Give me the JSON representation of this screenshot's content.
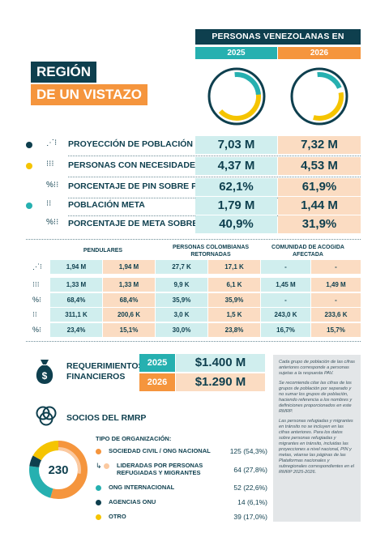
{
  "header": {
    "dest_title": "PERSONAS VENEZOLANAS EN DESTINO",
    "year_2025": "2025",
    "year_2026": "2026",
    "title_line1": "REGIÓN",
    "title_line2": "DE UN VISTAZO"
  },
  "donuts": [
    {
      "year": "2025",
      "teal_fraction": 0.25,
      "orange_fraction": 0.41
    },
    {
      "year": "2026",
      "teal_fraction": 0.2,
      "orange_fraction": 0.32
    }
  ],
  "indicators": [
    {
      "label": "PROYECCIÓN DE POBLACIÓN (PP)",
      "v2025": "7,03 M",
      "v2026": "7,32 M",
      "dot": "#0e3f4e",
      "icon": "population-projection-icon"
    },
    {
      "label": "PERSONAS CON NECESIDADES (PIN)",
      "v2025": "4,37 M",
      "v2026": "4,53 M",
      "dot": "#f5c400",
      "icon": "people-in-need-icon"
    },
    {
      "label": "PORCENTAJE DE PIN SOBRE PP",
      "v2025": "62,1%",
      "v2026": "61,9%",
      "dot": "",
      "icon": "pin-percentage-icon"
    },
    {
      "label": "POBLACIÓN META",
      "v2025": "1,79 M",
      "v2026": "1,44 M",
      "dot": "#26b0b0",
      "icon": "target-population-icon"
    },
    {
      "label": "PORCENTAJE DE META SOBRE PIN",
      "v2025": "40,9%",
      "v2026": "31,9%",
      "dot": "",
      "icon": "target-percentage-icon"
    }
  ],
  "breakdown": {
    "groups": [
      "PENDULARES",
      "PERSONAS COLOMBIANAS RETORNADAS",
      "COMUNIDAD DE ACOGIDA AFECTADA"
    ],
    "rows": [
      {
        "icon": "population-projection-icon",
        "cells": [
          "1,94 M",
          "1,94 M",
          "27,7 K",
          "17,1 K",
          "-",
          "-"
        ]
      },
      {
        "icon": "people-in-need-icon",
        "cells": [
          "1,33 M",
          "1,33 M",
          "9,9 K",
          "6,1 K",
          "1,45 M",
          "1,49 M"
        ]
      },
      {
        "icon": "pin-percentage-icon",
        "cells": [
          "68,4%",
          "68,4%",
          "35,9%",
          "35,9%",
          "-",
          "-"
        ]
      },
      {
        "icon": "target-population-icon",
        "cells": [
          "311,1 K",
          "200,6 K",
          "3,0 K",
          "1,5 K",
          "243,0 K",
          "233,6 K"
        ]
      },
      {
        "icon": "target-percentage-icon",
        "cells": [
          "23,4%",
          "15,1%",
          "30,0%",
          "23,8%",
          "16,7%",
          "15,7%"
        ]
      }
    ]
  },
  "financial": {
    "label_line1": "REQUERIMIENTOS",
    "label_line2": "FINANCIEROS",
    "rows": [
      {
        "year": "2025",
        "value": "$1.400 M"
      },
      {
        "year": "2026",
        "value": "$1.290 M"
      }
    ]
  },
  "notes": [
    "Cada grupo de población de las cifras anteriores corresponde a personas sujetas a la respuesta PAV.",
    "Se recomienda citar las cifras de los grupos de población por separado y no sumar los grupos de población, haciendo referencia a los nombres y definiciones proporcionados en este RMRP.",
    "Las personas refugiadas y migrantes en tránsito no se incluyen en las cifras anteriores. Para los datos sobre personas refugiadas y migrantes en tránsito, incluidas las proyecciones a nivel nacional, PIN y metas, véanse las páginas de las Plataformas nacionales y subregionales correspondientes en el RMRP 2025-2026."
  ],
  "socios": {
    "title": "SOCIOS DEL RMRP",
    "org_heading": "TIPO DE ORGANIZACIÓN:",
    "total": "230",
    "orgs": [
      {
        "name": "SOCIEDAD CIVIL / ONG NACIONAL",
        "value": "125 (54,3%)",
        "count": 125,
        "color": "#f5953d"
      },
      {
        "name": "LIDERADAS POR PERSONAS REFUGIADAS Y MIGRANTES",
        "value": "64 (27,8%)",
        "count": 64,
        "color": "#fbc9a0",
        "sub": true
      },
      {
        "name": "ONG INTERNACIONAL",
        "value": "52 (22,6%)",
        "count": 52,
        "color": "#26b0b0"
      },
      {
        "name": "AGENCIAS ONU",
        "value": "14 (6,1%)",
        "count": 14,
        "color": "#0e3f4e"
      },
      {
        "name": "OTRO",
        "value": "39 (17,0%)",
        "count": 39,
        "color": "#f5c400"
      }
    ]
  }
}
